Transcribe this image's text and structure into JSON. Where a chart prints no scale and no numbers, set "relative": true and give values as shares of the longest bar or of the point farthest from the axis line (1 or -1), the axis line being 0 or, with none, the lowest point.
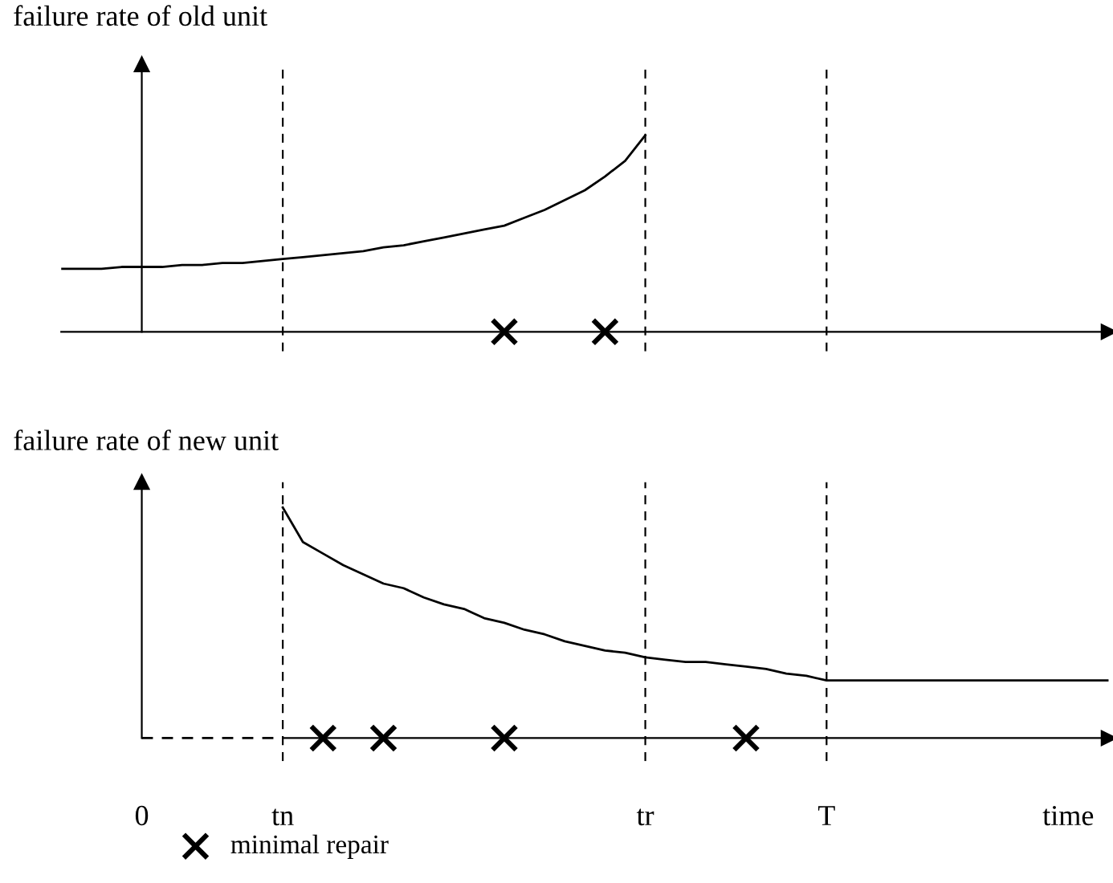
{
  "chart_data": [
    {
      "type": "line",
      "relative": true,
      "ylabel": "failure rate of old unit",
      "tick_labels": false,
      "legend": false,
      "categories": [
        null,
        null,
        null,
        null,
        "0",
        null,
        null,
        null,
        null,
        null,
        null,
        "tn",
        null,
        null,
        null,
        null,
        null,
        null,
        null,
        null,
        null,
        null,
        null,
        null,
        null,
        null,
        null,
        null,
        null,
        "tr",
        null,
        null,
        null,
        null,
        null,
        null,
        null,
        null,
        "T",
        null,
        null,
        null,
        null,
        null,
        null,
        null,
        null,
        null,
        null,
        null,
        "time",
        null,
        null
      ],
      "series": [
        {
          "color": "#000000",
          "marker": "none",
          "line_style": "solid",
          "values": [
            0.32,
            0.32,
            0.32,
            0.33,
            0.33,
            0.33,
            0.34,
            0.34,
            0.35,
            0.35,
            0.36,
            0.37,
            0.38,
            0.39,
            0.4,
            0.41,
            0.43,
            0.44,
            0.46,
            0.48,
            0.5,
            0.52,
            0.54,
            0.58,
            0.62,
            0.67,
            0.72,
            0.79,
            0.87,
            1.0,
            null,
            null,
            null,
            null,
            null,
            null,
            null,
            null,
            null,
            null,
            null,
            null,
            null,
            null,
            null,
            null,
            null,
            null,
            null,
            null,
            null,
            null,
            null
          ]
        },
        {
          "type": "scatter",
          "color": "#000000",
          "marker": "cross",
          "values": [
            null,
            null,
            null,
            null,
            null,
            null,
            null,
            null,
            null,
            null,
            null,
            null,
            null,
            null,
            null,
            null,
            null,
            null,
            null,
            null,
            null,
            null,
            0,
            null,
            null,
            null,
            null,
            0,
            null,
            null,
            null,
            null,
            null,
            null,
            null,
            null,
            null,
            null,
            null,
            null,
            null,
            null,
            null,
            null,
            null,
            null,
            null,
            null,
            null,
            null,
            null,
            null,
            null
          ]
        }
      ],
      "ref_lines": [
        {
          "axis": "x",
          "value": "tn",
          "line_style": "dashed",
          "color": "#000000"
        },
        {
          "axis": "x",
          "value": "tr",
          "line_style": "dashed",
          "color": "#000000"
        },
        {
          "axis": "x",
          "value": "T",
          "line_style": "dashed",
          "color": "#000000"
        }
      ]
    },
    {
      "type": "line",
      "relative": true,
      "ylabel": "failure rate of new unit",
      "tick_labels": "x",
      "legend": "bottom left",
      "categories": [
        null,
        null,
        null,
        null,
        "0",
        null,
        null,
        null,
        null,
        null,
        null,
        "tn",
        null,
        null,
        null,
        null,
        null,
        null,
        null,
        null,
        null,
        null,
        null,
        null,
        null,
        null,
        null,
        null,
        null,
        "tr",
        null,
        null,
        null,
        null,
        null,
        null,
        null,
        null,
        "T",
        null,
        null,
        null,
        null,
        null,
        null,
        null,
        null,
        null,
        null,
        null,
        "time",
        null,
        null
      ],
      "series": [
        {
          "color": "#000000",
          "marker": "none",
          "line_style": "dashed",
          "values": [
            null,
            null,
            null,
            null,
            0,
            0,
            0,
            0,
            0,
            0,
            0,
            0,
            null,
            null,
            null,
            null,
            null,
            null,
            null,
            null,
            null,
            null,
            null,
            null,
            null,
            null,
            null,
            null,
            null,
            null,
            null,
            null,
            null,
            null,
            null,
            null,
            null,
            null,
            null,
            null,
            null,
            null,
            null,
            null,
            null,
            null,
            null,
            null,
            null,
            null,
            null,
            null,
            null
          ]
        },
        {
          "color": "#000000",
          "marker": "none",
          "line_style": "solid",
          "values": [
            null,
            null,
            null,
            null,
            null,
            null,
            null,
            null,
            null,
            null,
            null,
            1,
            0.85,
            0.8,
            0.75,
            0.71,
            0.67,
            0.65,
            0.61,
            0.58,
            0.56,
            0.52,
            0.5,
            0.47,
            0.45,
            0.42,
            0.4,
            0.38,
            0.37,
            0.35,
            0.34,
            0.33,
            0.33,
            0.32,
            0.31,
            0.3,
            0.28,
            0.27,
            0.25,
            0.25,
            0.25,
            0.25,
            0.25,
            0.25,
            0.25,
            0.25,
            0.25,
            0.25,
            0.25,
            0.25,
            0.25,
            0.25,
            0.25
          ]
        },
        {
          "type": "scatter",
          "name": "minimal repair",
          "color": "#000000",
          "marker": "cross",
          "values": [
            null,
            null,
            null,
            null,
            null,
            null,
            null,
            null,
            null,
            null,
            null,
            null,
            null,
            0,
            null,
            null,
            0,
            null,
            null,
            null,
            null,
            null,
            0,
            null,
            null,
            null,
            null,
            null,
            null,
            null,
            null,
            null,
            null,
            null,
            0,
            null,
            null,
            null,
            null,
            null,
            null,
            null,
            null,
            null,
            null,
            null,
            null,
            null,
            null,
            null,
            null,
            null,
            null
          ]
        }
      ],
      "ref_lines": [
        {
          "axis": "x",
          "value": "tn",
          "line_style": "dashed",
          "color": "#000000"
        },
        {
          "axis": "x",
          "value": "tr",
          "line_style": "dashed",
          "color": "#000000"
        },
        {
          "axis": "x",
          "value": "T",
          "line_style": "dashed",
          "color": "#000000"
        }
      ]
    }
  ]
}
